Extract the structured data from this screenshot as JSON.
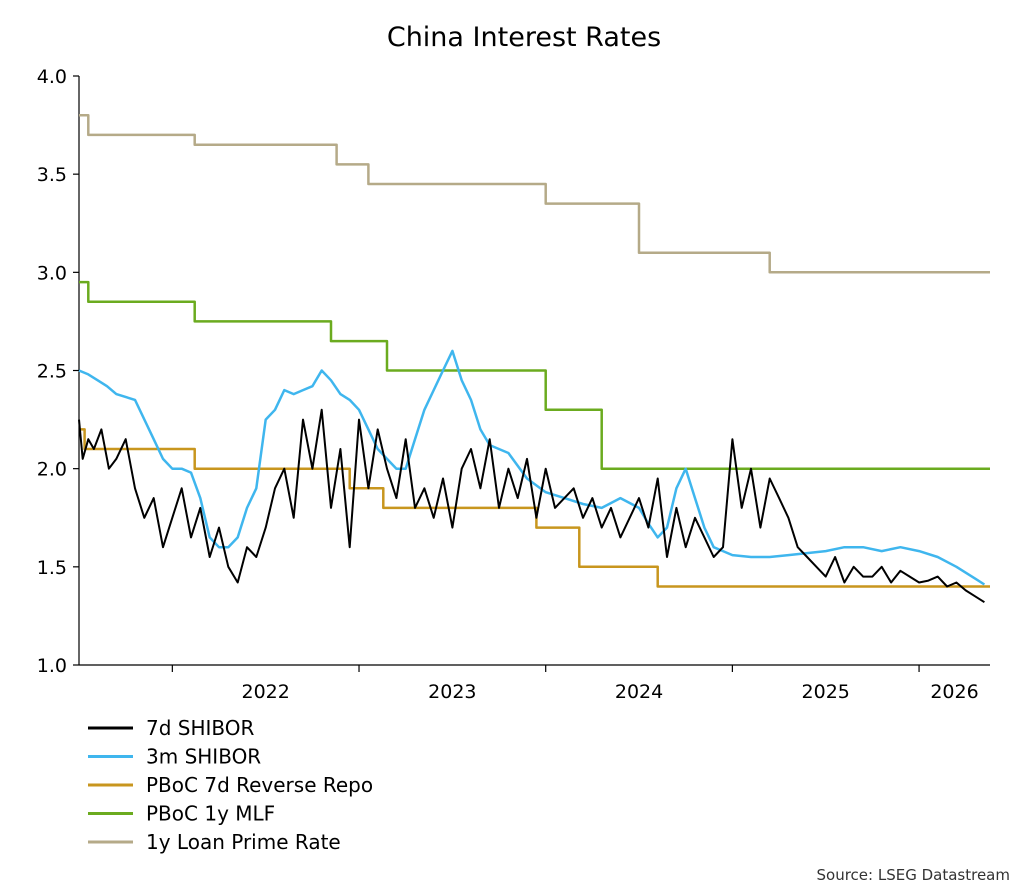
{
  "chart_data": {
    "type": "line",
    "title": "China Interest Rates",
    "source": "Source: LSEG Datastream",
    "xlabel": "",
    "ylabel": "",
    "xlim": [
      2021.5,
      2026.38
    ],
    "ylim": [
      1.0,
      4.0
    ],
    "y_ticks": [
      "1.0",
      "1.5",
      "2.0",
      "2.5",
      "3.0",
      "3.5",
      "4.0"
    ],
    "x_ticks": [
      "2022",
      "2023",
      "2024",
      "2025",
      "2026"
    ],
    "grid": false,
    "legend_position": "bottom-left",
    "series": [
      {
        "name": "7d SHIBOR",
        "color": "#000000",
        "x": [
          2021.5,
          2021.52,
          2021.55,
          2021.58,
          2021.62,
          2021.66,
          2021.7,
          2021.75,
          2021.8,
          2021.85,
          2021.9,
          2021.95,
          2022.0,
          2022.05,
          2022.1,
          2022.15,
          2022.2,
          2022.25,
          2022.3,
          2022.35,
          2022.4,
          2022.45,
          2022.5,
          2022.55,
          2022.6,
          2022.65,
          2022.7,
          2022.75,
          2022.8,
          2022.85,
          2022.9,
          2022.95,
          2023.0,
          2023.05,
          2023.1,
          2023.15,
          2023.2,
          2023.25,
          2023.3,
          2023.35,
          2023.4,
          2023.45,
          2023.5,
          2023.55,
          2023.6,
          2023.65,
          2023.7,
          2023.75,
          2023.8,
          2023.85,
          2023.9,
          2023.95,
          2024.0,
          2024.05,
          2024.1,
          2024.15,
          2024.2,
          2024.25,
          2024.3,
          2024.35,
          2024.4,
          2024.45,
          2024.5,
          2024.55,
          2024.6,
          2024.65,
          2024.7,
          2024.75,
          2024.8,
          2024.85,
          2024.9,
          2024.95,
          2025.0,
          2025.05,
          2025.1,
          2025.15,
          2025.2,
          2025.25,
          2025.3,
          2025.35,
          2025.4,
          2025.45,
          2025.5,
          2025.55,
          2025.6,
          2025.65,
          2025.7,
          2025.75,
          2025.8,
          2025.85,
          2025.9,
          2025.95,
          2026.0,
          2026.05,
          2026.1,
          2026.15,
          2026.2,
          2026.25,
          2026.3,
          2026.35
        ],
        "values": [
          2.25,
          2.05,
          2.15,
          2.1,
          2.2,
          2.0,
          2.05,
          2.15,
          1.9,
          1.75,
          1.85,
          1.6,
          1.75,
          1.9,
          1.65,
          1.8,
          1.55,
          1.7,
          1.5,
          1.42,
          1.6,
          1.55,
          1.7,
          1.9,
          2.0,
          1.75,
          2.25,
          2.0,
          2.3,
          1.8,
          2.1,
          1.6,
          2.25,
          1.9,
          2.2,
          2.0,
          1.85,
          2.15,
          1.8,
          1.9,
          1.75,
          1.95,
          1.7,
          2.0,
          2.1,
          1.9,
          2.15,
          1.8,
          2.0,
          1.85,
          2.05,
          1.75,
          2.0,
          1.8,
          1.85,
          1.9,
          1.75,
          1.85,
          1.7,
          1.8,
          1.65,
          1.75,
          1.85,
          1.7,
          1.95,
          1.55,
          1.8,
          1.6,
          1.75,
          1.65,
          1.55,
          1.6,
          2.15,
          1.8,
          2.0,
          1.7,
          1.95,
          1.85,
          1.75,
          1.6,
          1.55,
          1.5,
          1.45,
          1.55,
          1.42,
          1.5,
          1.45,
          1.45,
          1.5,
          1.42,
          1.48,
          1.45,
          1.42,
          1.43,
          1.45,
          1.4,
          1.42,
          1.38,
          1.35,
          1.32
        ]
      },
      {
        "name": "3m SHIBOR",
        "color": "#3fb6ee",
        "x": [
          2021.5,
          2021.55,
          2021.6,
          2021.65,
          2021.7,
          2021.8,
          2021.9,
          2021.95,
          2022.0,
          2022.05,
          2022.1,
          2022.15,
          2022.2,
          2022.25,
          2022.3,
          2022.35,
          2022.4,
          2022.45,
          2022.5,
          2022.55,
          2022.6,
          2022.65,
          2022.7,
          2022.75,
          2022.8,
          2022.85,
          2022.9,
          2022.95,
          2023.0,
          2023.05,
          2023.1,
          2023.15,
          2023.2,
          2023.25,
          2023.3,
          2023.35,
          2023.4,
          2023.45,
          2023.5,
          2023.55,
          2023.6,
          2023.65,
          2023.7,
          2023.8,
          2023.9,
          2024.0,
          2024.1,
          2024.2,
          2024.3,
          2024.4,
          2024.5,
          2024.55,
          2024.6,
          2024.65,
          2024.7,
          2024.75,
          2024.8,
          2024.85,
          2024.9,
          2024.95,
          2025.0,
          2025.1,
          2025.2,
          2025.3,
          2025.4,
          2025.5,
          2025.6,
          2025.7,
          2025.8,
          2025.9,
          2026.0,
          2026.1,
          2026.2,
          2026.3,
          2026.35
        ],
        "values": [
          2.5,
          2.48,
          2.45,
          2.42,
          2.38,
          2.35,
          2.15,
          2.05,
          2.0,
          2.0,
          1.98,
          1.85,
          1.65,
          1.6,
          1.6,
          1.65,
          1.8,
          1.9,
          2.25,
          2.3,
          2.4,
          2.38,
          2.4,
          2.42,
          2.5,
          2.45,
          2.38,
          2.35,
          2.3,
          2.2,
          2.1,
          2.05,
          2.0,
          2.0,
          2.15,
          2.3,
          2.4,
          2.5,
          2.6,
          2.45,
          2.35,
          2.2,
          2.12,
          2.08,
          1.95,
          1.88,
          1.85,
          1.82,
          1.8,
          1.85,
          1.8,
          1.72,
          1.65,
          1.7,
          1.9,
          2.0,
          1.85,
          1.7,
          1.6,
          1.58,
          1.56,
          1.55,
          1.55,
          1.56,
          1.57,
          1.58,
          1.6,
          1.6,
          1.58,
          1.6,
          1.58,
          1.55,
          1.5,
          1.44,
          1.41
        ]
      },
      {
        "name": "PBoC 7d Reverse Repo",
        "color": "#c8961e",
        "x": [
          2021.5,
          2021.53,
          2021.53,
          2022.12,
          2022.12,
          2022.95,
          2022.95,
          2023.13,
          2023.13,
          2023.95,
          2023.95,
          2024.18,
          2024.18,
          2024.35,
          2024.35,
          2024.6,
          2024.6,
          2025.36,
          2025.36,
          2026.38
        ],
        "values": [
          2.2,
          2.2,
          2.1,
          2.1,
          2.0,
          2.0,
          1.9,
          1.9,
          1.8,
          1.8,
          1.7,
          1.7,
          1.5,
          1.5,
          1.5,
          1.5,
          1.4,
          1.4,
          1.4,
          1.4
        ]
      },
      {
        "name": "PBoC 1y MLF",
        "color": "#6bab1f",
        "x": [
          2021.5,
          2021.55,
          2021.55,
          2022.12,
          2022.12,
          2022.85,
          2022.85,
          2023.15,
          2023.15,
          2024.0,
          2024.0,
          2024.3,
          2024.3,
          2026.38
        ],
        "values": [
          2.95,
          2.95,
          2.85,
          2.85,
          2.75,
          2.75,
          2.65,
          2.65,
          2.5,
          2.5,
          2.3,
          2.3,
          2.0,
          2.0
        ]
      },
      {
        "name": "1y Loan Prime Rate",
        "color": "#b5aa88",
        "x": [
          2021.5,
          2021.55,
          2021.55,
          2022.12,
          2022.12,
          2022.88,
          2022.88,
          2023.05,
          2023.05,
          2024.0,
          2024.0,
          2024.5,
          2024.5,
          2024.85,
          2024.85,
          2025.2,
          2025.2,
          2026.38
        ],
        "values": [
          3.8,
          3.8,
          3.7,
          3.7,
          3.65,
          3.65,
          3.55,
          3.55,
          3.45,
          3.45,
          3.35,
          3.35,
          3.1,
          3.1,
          3.1,
          3.1,
          3.0,
          3.0
        ]
      }
    ]
  }
}
